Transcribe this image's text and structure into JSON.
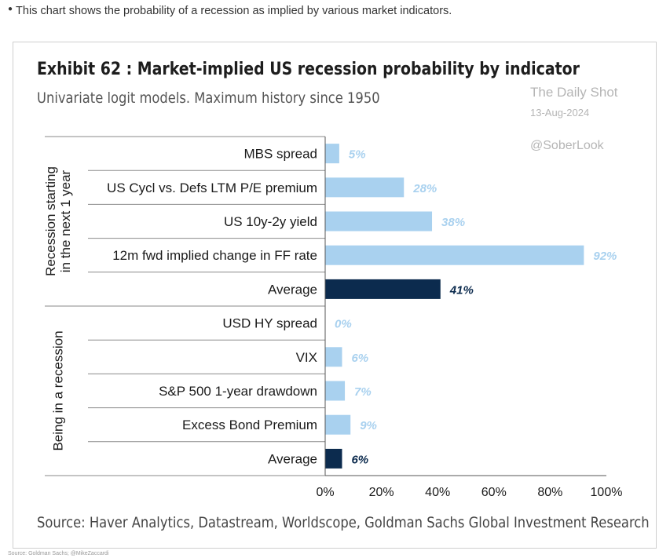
{
  "page": {
    "caption": "This chart shows the probability of a recession as implied by various market indicators.",
    "footnote": "Source: Goldman Sachs; @MikeZaccardi"
  },
  "watermark": {
    "line1": "The Daily Shot",
    "line2": "13-Aug-2024",
    "line3": "@SoberLook"
  },
  "chart_data": {
    "type": "bar",
    "orientation": "horizontal",
    "title": "Exhibit 62 : Market-implied US recession probability by indicator",
    "subtitle": "Univariate logit models. Maximum history since 1950",
    "source": "Source: Haver Analytics, Datastream, Worldscope, Goldman Sachs Global Investment Research",
    "xlim": [
      0,
      100
    ],
    "x_ticks": [
      "0%",
      "20%",
      "40%",
      "60%",
      "80%",
      "100%"
    ],
    "grid": false,
    "colors": {
      "indicator": "#a9d1ef",
      "average": "#0c2b4e",
      "indicator_label": "#a9d1ef",
      "average_label": "#0c2b4e"
    },
    "groups": [
      {
        "name": "Recession starting in the next 1 year",
        "name_lines": [
          "Recession starting",
          "in the next 1 year"
        ],
        "bars": [
          {
            "label": "MBS spread",
            "value": 5,
            "value_label": "5%",
            "kind": "indicator"
          },
          {
            "label": "US Cycl vs. Defs LTM P/E premium",
            "value": 28,
            "value_label": "28%",
            "kind": "indicator"
          },
          {
            "label": "US 10y-2y yield",
            "value": 38,
            "value_label": "38%",
            "kind": "indicator"
          },
          {
            "label": "12m fwd implied change in FF rate",
            "value": 92,
            "value_label": "92%",
            "kind": "indicator"
          },
          {
            "label": "Average",
            "value": 41,
            "value_label": "41%",
            "kind": "average"
          }
        ]
      },
      {
        "name": "Being in a recession",
        "name_lines": [
          "Being in a recession"
        ],
        "bars": [
          {
            "label": "USD HY spread",
            "value": 0,
            "value_label": "0%",
            "kind": "indicator"
          },
          {
            "label": "VIX",
            "value": 6,
            "value_label": "6%",
            "kind": "indicator"
          },
          {
            "label": "S&P 500 1-year drawdown",
            "value": 7,
            "value_label": "7%",
            "kind": "indicator"
          },
          {
            "label": "Excess Bond Premium",
            "value": 9,
            "value_label": "9%",
            "kind": "indicator"
          },
          {
            "label": "Average",
            "value": 6,
            "value_label": "6%",
            "kind": "average"
          }
        ]
      }
    ]
  }
}
